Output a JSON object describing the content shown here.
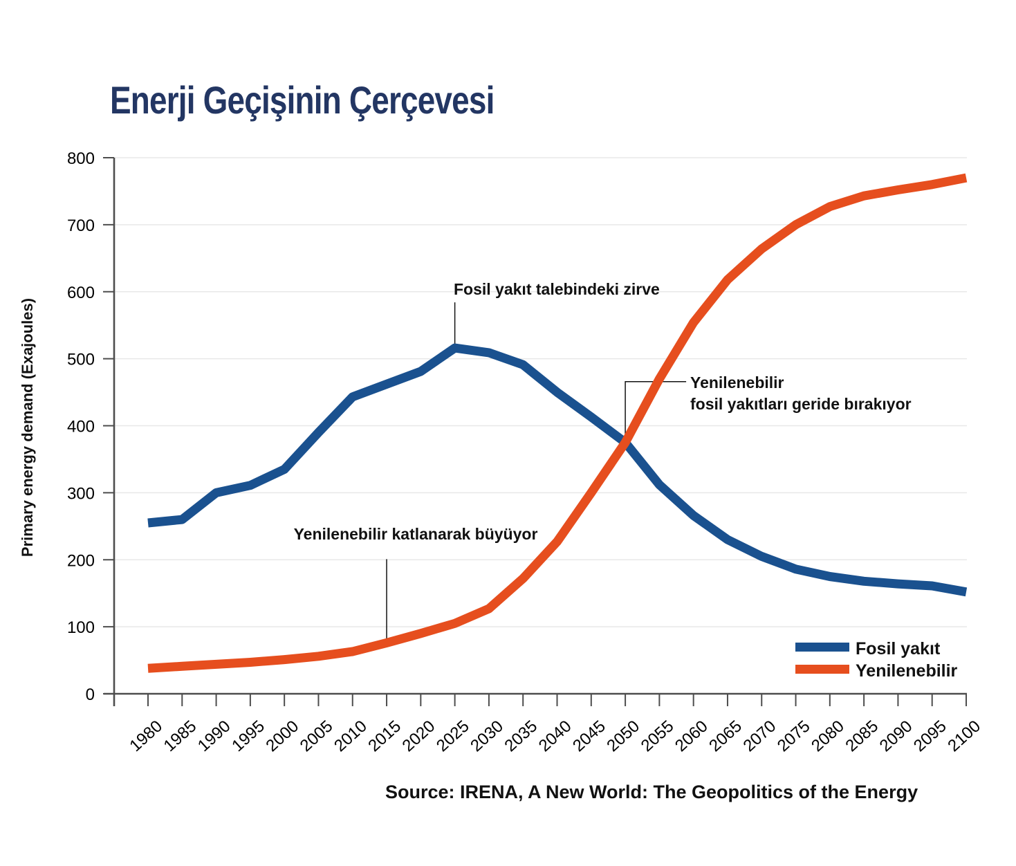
{
  "title": "Enerji Geçişinin Çerçevesi",
  "y_axis_label": "Primary energy demand (Exajoules)",
  "source_caption": "Source: IRENA, A New World: The Geopolitics of the Energy",
  "annotations": {
    "peak": "Fosil yakıt talebindeki zirve",
    "crossover_line1": "Yenilenebilir",
    "crossover_line2": "fosil yakıtları geride bırakıyor",
    "growth": "Yenilenebilir katlanarak büyüyor"
  },
  "colors": {
    "fossil": "#1a518f",
    "renewable": "#e64e1e",
    "title_text": "#233663",
    "grid": "#e8e8e8",
    "axis": "#4d4d4d",
    "annotation_line": "#111111",
    "background": "#ffffff"
  },
  "chart_data": {
    "type": "line",
    "title": "Enerji Geçişinin Çerçevesi",
    "xlabel": "",
    "ylabel": "Primary energy demand (Exajoules)",
    "ylim": [
      0,
      800
    ],
    "yticks": [
      0,
      100,
      200,
      300,
      400,
      500,
      600,
      700,
      800
    ],
    "grid": true,
    "legend_position": "inside-bottom-right",
    "x": [
      1980,
      1985,
      1990,
      1995,
      2000,
      2005,
      2010,
      2015,
      2020,
      2025,
      2030,
      2035,
      2040,
      2045,
      2050,
      2055,
      2060,
      2065,
      2070,
      2075,
      2080,
      2085,
      2090,
      2095,
      2100
    ],
    "series": [
      {
        "name": "Fosil yakıt",
        "color": "#1a518f",
        "values": [
          255,
          260,
          300,
          311,
          335,
          390,
          443,
          462,
          481,
          516,
          509,
          491,
          450,
          413,
          375,
          312,
          266,
          230,
          205,
          186,
          175,
          168,
          164,
          161,
          152
        ]
      },
      {
        "name": "Yenilenebilir",
        "color": "#e64e1e",
        "values": [
          38,
          41,
          44,
          47,
          51,
          56,
          63,
          76,
          90,
          105,
          127,
          172,
          227,
          300,
          375,
          470,
          554,
          618,
          664,
          700,
          727,
          743,
          752,
          760,
          770
        ]
      }
    ],
    "annotations": [
      {
        "text": "Fosil yakıt talebindeki zirve",
        "x": 2025,
        "y": 516
      },
      {
        "text": "Yenilenebilir fosil yakıtları geride bırakıyor",
        "x": 2050,
        "y": 375
      },
      {
        "text": "Yenilenebilir katlanarak büyüyor",
        "x": 2015,
        "y": 76
      }
    ]
  }
}
